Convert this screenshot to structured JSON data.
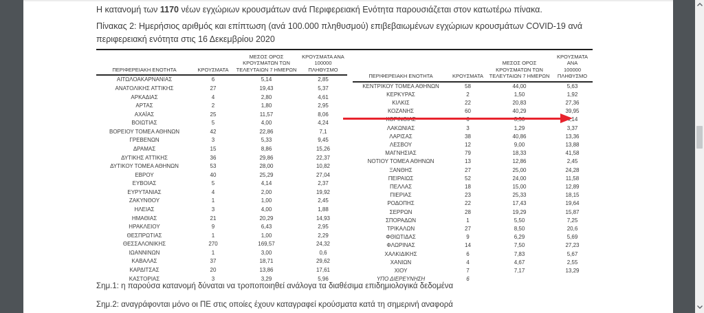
{
  "colors": {
    "viewer_background": "#4e5357",
    "page_background": "#ffffff",
    "arrow_red": "#e8232d",
    "scrollbar_track": "#f1f1f1",
    "scrollbar_thumb": "#c6c9cb"
  },
  "page": {
    "intro_prefix": "Η κατανομή των ",
    "intro_bold": "1170",
    "intro_suffix": " νέων εγχώριων κρουσμάτων ανά Περιφερειακή Ενότητα παρουσιάζεται στον κατωτέρω πίνακα.",
    "caption": "Πίνακας 2:  Ημερήσιος αριθμός και επίπτωση (ανά 100.000 πληθυσμού) επιβεβαιωμένων εγχώριων κρουσμάτων COVID-19 ανά περιφερειακή ενότητα στις 16 Δεκεμβρίου 2020",
    "note1": "Σημ.1: η παρούσα κατανομή δύναται να τροποποιηθεί ανάλογα τα διαθέσιμα επιδημιολογικά δεδομένα",
    "note2": "Σημ.2: αναγράφονται μόνο οι ΠΕ στις οποίες έχουν καταγραφεί κρούσματα κατά τη σημερινή αναφορά"
  },
  "table": {
    "headers": [
      "ΠΕΡΙΦΕΡΕΙΑΚΗ ΕΝΟΤΗΤΑ",
      "ΚΡΟΥΣΜΑΤΑ",
      "ΜΕΣΟΣ ΟΡΟΣ\nΚΡΟΥΣΜΑΤΩΝ ΤΩΝ\nΤΕΛΕΥΤΑΙΩΝ 7 ΗΜΕΡΩΝ",
      "ΚΡΟΥΣΜΑΤΑ ΑΝΑ\n100000 ΠΛΗΘΥΣΜΟ"
    ],
    "left_rows": [
      {
        "region": "ΑΙΤΩΛΟΑΚΑΡΝΑΝΙΑΣ",
        "cases": "6",
        "avg7": "5,14",
        "per100k": "2,85"
      },
      {
        "region": "ΑΝΑΤΟΛΙΚΗΣ ΑΤΤΙΚΗΣ",
        "cases": "27",
        "avg7": "19,43",
        "per100k": "5,37"
      },
      {
        "region": "ΑΡΚΑΔΙΑΣ",
        "cases": "4",
        "avg7": "2,80",
        "per100k": "4,61"
      },
      {
        "region": "ΑΡΤΑΣ",
        "cases": "2",
        "avg7": "1,80",
        "per100k": "2,95"
      },
      {
        "region": "ΑΧΑΪΑΣ",
        "cases": "25",
        "avg7": "11,57",
        "per100k": "8,06"
      },
      {
        "region": "ΒΟΙΩΤΙΑΣ",
        "cases": "5",
        "avg7": "4,00",
        "per100k": "4,24"
      },
      {
        "region": "ΒΟΡΕΙΟΥ ΤΟΜΕΑ ΑΘΗΝΩΝ",
        "cases": "42",
        "avg7": "22,86",
        "per100k": "7,1"
      },
      {
        "region": "ΓΡΕΒΕΝΩΝ",
        "cases": "3",
        "avg7": "5,33",
        "per100k": "9,45"
      },
      {
        "region": "ΔΡΑΜΑΣ",
        "cases": "15",
        "avg7": "8,86",
        "per100k": "15,26"
      },
      {
        "region": "ΔΥΤΙΚΗΣ ΑΤΤΙΚΗΣ",
        "cases": "36",
        "avg7": "29,86",
        "per100k": "22,37"
      },
      {
        "region": "ΔΥΤΙΚΟΥ ΤΟΜΕΑ ΑΘΗΝΩΝ",
        "cases": "53",
        "avg7": "28,00",
        "per100k": "10,82"
      },
      {
        "region": "ΕΒΡΟΥ",
        "cases": "40",
        "avg7": "25,29",
        "per100k": "27,04"
      },
      {
        "region": "ΕΥΒΟΙΑΣ",
        "cases": "5",
        "avg7": "4,14",
        "per100k": "2,37"
      },
      {
        "region": "ΕΥΡΥΤΑΝΙΑΣ",
        "cases": "4",
        "avg7": "2,00",
        "per100k": "19,92"
      },
      {
        "region": "ΖΑΚΥΝΘΟΥ",
        "cases": "1",
        "avg7": "1,00",
        "per100k": "2,45"
      },
      {
        "region": "ΗΛΕΙΑΣ",
        "cases": "3",
        "avg7": "4,00",
        "per100k": "1,88"
      },
      {
        "region": "ΗΜΑΘΙΑΣ",
        "cases": "21",
        "avg7": "20,29",
        "per100k": "14,93"
      },
      {
        "region": "ΗΡΑΚΛΕΙΟΥ",
        "cases": "9",
        "avg7": "6,43",
        "per100k": "2,95"
      },
      {
        "region": "ΘΕΣΠΡΩΤΙΑΣ",
        "cases": "1",
        "avg7": "1,00",
        "per100k": "2,29"
      },
      {
        "region": "ΘΕΣΣΑΛΟΝΙΚΗΣ",
        "cases": "270",
        "avg7": "169,57",
        "per100k": "24,32"
      },
      {
        "region": "ΙΩΑΝΝΙΝΩΝ",
        "cases": "1",
        "avg7": "3,00",
        "per100k": "0,6"
      },
      {
        "region": "ΚΑΒΑΛΑΣ",
        "cases": "37",
        "avg7": "18,71",
        "per100k": "29,62"
      },
      {
        "region": "ΚΑΡΔΙΤΣΑΣ",
        "cases": "20",
        "avg7": "13,86",
        "per100k": "17,61"
      },
      {
        "region": "ΚΑΣΤΟΡΙΑΣ",
        "cases": "3",
        "avg7": "3,29",
        "per100k": "5,96"
      }
    ],
    "right_rows": [
      {
        "region": "ΚΕΝΤΡΙΚΟΥ ΤΟΜΕΑ ΑΘΗΝΩΝ",
        "cases": "58",
        "avg7": "44,00",
        "per100k": "5,63"
      },
      {
        "region": "ΚΕΡΚΥΡΑΣ",
        "cases": "2",
        "avg7": "1,50",
        "per100k": "1,92"
      },
      {
        "region": "ΚΙΛΚΙΣ",
        "cases": "22",
        "avg7": "20,83",
        "per100k": "27,36"
      },
      {
        "region": "ΚΟΖΑΝΗΣ",
        "cases": "60",
        "avg7": "40,29",
        "per100k": "39,95"
      },
      {
        "region": "ΚΟΡΙΝΘΙΑΣ",
        "cases": "6",
        "avg7": "3,50",
        "per100k": "4,14"
      },
      {
        "region": "ΛΑΚΩΝΙΑΣ",
        "cases": "3",
        "avg7": "1,29",
        "per100k": "3,37"
      },
      {
        "region": "ΛΑΡΙΣΑΣ",
        "cases": "38",
        "avg7": "40,86",
        "per100k": "13,36"
      },
      {
        "region": "ΛΕΣΒΟΥ",
        "cases": "12",
        "avg7": "9,00",
        "per100k": "13,88"
      },
      {
        "region": "ΜΑΓΝΗΣΙΑΣ",
        "cases": "79",
        "avg7": "18,33",
        "per100k": "41,58"
      },
      {
        "region": "ΝΟΤΙΟΥ ΤΟΜΕΑ ΑΘΗΝΩΝ",
        "cases": "13",
        "avg7": "12,86",
        "per100k": "2,45"
      },
      {
        "region": "ΞΑΝΘΗΣ",
        "cases": "27",
        "avg7": "25,00",
        "per100k": "24,28"
      },
      {
        "region": "ΠΕΙΡΑΙΩΣ",
        "cases": "52",
        "avg7": "24,00",
        "per100k": "11,58"
      },
      {
        "region": "ΠΕΛΛΑΣ",
        "cases": "18",
        "avg7": "15,00",
        "per100k": "12,89"
      },
      {
        "region": "ΠΙΕΡΙΑΣ",
        "cases": "23",
        "avg7": "25,33",
        "per100k": "18,15"
      },
      {
        "region": "ΡΟΔΟΠΗΣ",
        "cases": "22",
        "avg7": "17,43",
        "per100k": "19,64"
      },
      {
        "region": "ΣΕΡΡΩΝ",
        "cases": "28",
        "avg7": "19,29",
        "per100k": "15,87"
      },
      {
        "region": "ΣΠΟΡΑΔΩΝ",
        "cases": "1",
        "avg7": "5,50",
        "per100k": "7,25"
      },
      {
        "region": "ΤΡΙΚΑΛΩΝ",
        "cases": "27",
        "avg7": "8,50",
        "per100k": "20,6"
      },
      {
        "region": "ΦΘΙΩΤΙΔΑΣ",
        "cases": "9",
        "avg7": "6,29",
        "per100k": "5,69"
      },
      {
        "region": "ΦΛΩΡΙΝΑΣ",
        "cases": "14",
        "avg7": "7,50",
        "per100k": "27,23"
      },
      {
        "region": "ΧΑΛΚΙΔΙΚΗΣ",
        "cases": "6",
        "avg7": "7,83",
        "per100k": "5,67"
      },
      {
        "region": "ΧΑΝΙΩΝ",
        "cases": "4",
        "avg7": "4,67",
        "per100k": "2,55"
      },
      {
        "region": "ΧΙΟΥ",
        "cases": "7",
        "avg7": "7,17",
        "per100k": "13,29"
      },
      {
        "region": "ΥΠΟ ΔΙΕΡΕΥΝΗΣΗ",
        "cases": "6",
        "avg7": "",
        "per100k": "",
        "italic": true
      }
    ]
  }
}
